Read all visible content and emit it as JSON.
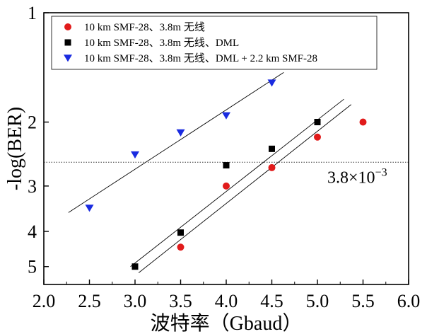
{
  "chart_data": {
    "type": "scatter",
    "xlabel": "波特率（Gbaud）",
    "ylabel": "-log(BER)",
    "xlim": [
      2.0,
      6.0
    ],
    "x_ticks": [
      2.0,
      2.5,
      3.0,
      3.5,
      4.0,
      4.5,
      5.0,
      5.5,
      6.0
    ],
    "x_tick_labels": [
      "2.0",
      "2.5",
      "3.0",
      "3.5",
      "4.0",
      "4.5",
      "5.0",
      "5.5",
      "6.0"
    ],
    "y_scale": "log-log (tick labels show -log(BER))",
    "y_ticks": [
      1,
      2,
      3,
      4,
      5
    ],
    "y_tick_labels": [
      "1",
      "2",
      "3",
      "4",
      "5"
    ],
    "ylim": [
      1,
      5.6
    ],
    "legend_position": "top-left",
    "series": [
      {
        "name": "10 km SMF-28、3.8m 无线",
        "marker": "circle",
        "color": "#e11b1b",
        "x": [
          3.5,
          4.0,
          4.5,
          5.0,
          5.5
        ],
        "y": [
          4.42,
          3.0,
          2.67,
          2.2,
          2.0
        ]
      },
      {
        "name": "10 km SMF-28、3.8m 无线、DML",
        "marker": "square",
        "color": "#000000",
        "x": [
          3.0,
          3.5,
          4.0,
          4.5,
          5.0
        ],
        "y": [
          5.0,
          4.03,
          2.63,
          2.37,
          2.0
        ]
      },
      {
        "name": "10 km SMF-28、3.8m 无线、DML + 2.2 km SMF-28",
        "marker": "triangle-down",
        "color": "#1a2be0",
        "x": [
          2.5,
          3.0,
          3.5,
          4.0,
          4.5
        ],
        "y": [
          3.45,
          2.46,
          2.14,
          1.92,
          1.56
        ]
      }
    ],
    "threshold": {
      "y": 2.58,
      "label_base": "3.8×10",
      "label_exp": "−3"
    }
  }
}
